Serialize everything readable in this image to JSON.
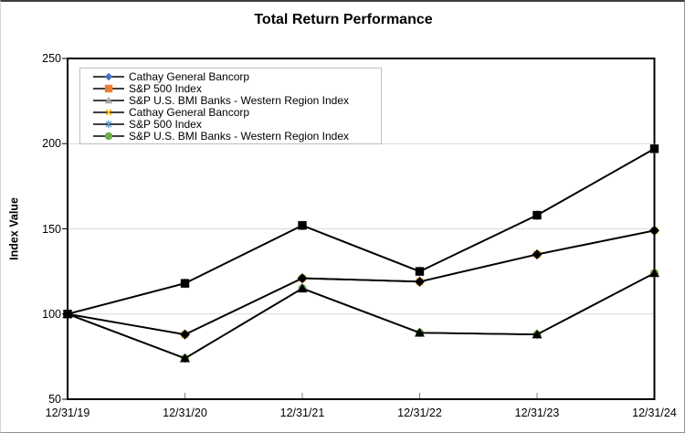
{
  "figure": {
    "title": "Total Return Performance"
  },
  "chart_data": {
    "type": "line",
    "title": "Total Return Performance",
    "xlabel": "",
    "ylabel": "Index Value",
    "categories": [
      "12/31/19",
      "12/31/20",
      "12/31/21",
      "12/31/22",
      "12/31/23",
      "12/31/24"
    ],
    "y_ticks": [
      50,
      100,
      150,
      200,
      250
    ],
    "ylim": [
      50,
      250
    ],
    "grid": "horizontal-light-gray",
    "legend_position": "inside-top-left",
    "series": [
      {
        "name": "Cathay General Bancorp",
        "marker": "diamond",
        "legend_marker_color": "#4472C4",
        "plot_marker_color": "#000000",
        "line_color": "#000000",
        "values": [
          100,
          88,
          121,
          119,
          135,
          149
        ]
      },
      {
        "name": "S&P 500 Index",
        "marker": "square",
        "legend_marker_color": "#ED7D31",
        "plot_marker_color": "#000000",
        "line_color": "#000000",
        "values": [
          100,
          118,
          152,
          125,
          158,
          197
        ]
      },
      {
        "name": "S&P U.S. BMI Banks - Western Region Index",
        "marker": "triangle",
        "legend_marker_color": "#A5A5A5",
        "plot_marker_color": "#000000",
        "line_color": "#000000",
        "values": [
          100,
          74,
          115,
          89,
          88,
          124
        ]
      },
      {
        "name": "Cathay General Bancorp",
        "marker": "x",
        "legend_marker_color": "#FFC000",
        "plot_marker_color": "#FFC000",
        "line_color": "#000000",
        "values": [
          100,
          88,
          121,
          119,
          135,
          149
        ]
      },
      {
        "name": "S&P 500 Index",
        "marker": "asterisk",
        "legend_marker_color": "#5B9BD5",
        "plot_marker_color": "#5B9BD5",
        "line_color": "#000000",
        "values": [
          100,
          118,
          152,
          125,
          158,
          197
        ]
      },
      {
        "name": "S&P U.S. BMI Banks - Western Region Index",
        "marker": "circle",
        "legend_marker_color": "#70AD47",
        "plot_marker_color": "#70AD47",
        "line_color": "#000000",
        "values": [
          100,
          74,
          115,
          89,
          88,
          124
        ]
      }
    ],
    "colors": {
      "grid": "#D9D9D9",
      "axis": "#000000",
      "x_tick": "#808080",
      "legend_border": "#BFBFBF",
      "background": "#FFFFFF"
    }
  }
}
